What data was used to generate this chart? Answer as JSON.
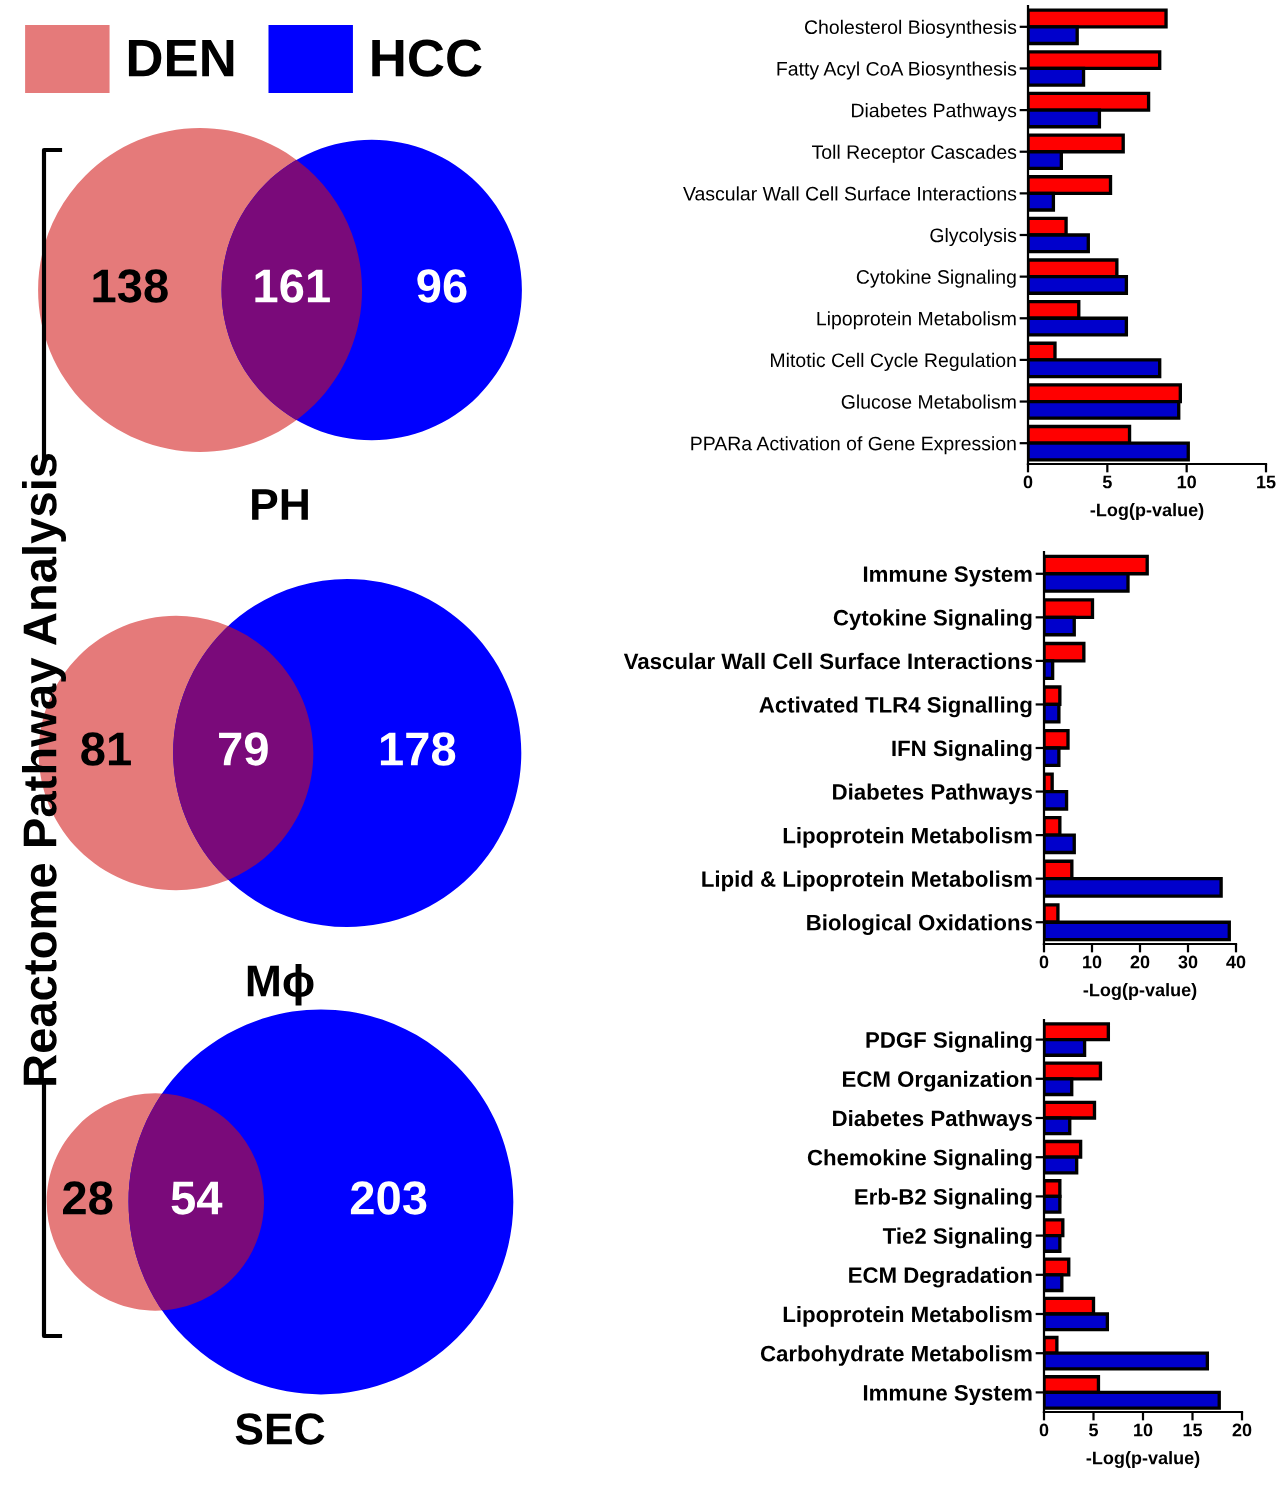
{
  "chart_data": [
    {
      "type": "other",
      "legend": "top left",
      "series": [
        {
          "name": "DEN",
          "color": "#e57a7a"
        },
        {
          "name": "HCC",
          "color": "#0000ff"
        }
      ]
    },
    {
      "type": "other",
      "title": "PH",
      "categories": [
        null,
        null,
        null
      ],
      "values": [
        138,
        161,
        96
      ],
      "colors": [
        "#e57a7a",
        "#7a0a7a",
        "#0000ff"
      ],
      "data_labels": true
    },
    {
      "type": "other",
      "title": "Mϕ",
      "categories": [
        null,
        null,
        null
      ],
      "values": [
        81,
        79,
        178
      ],
      "colors": [
        "#e57a7a",
        "#7a0a7a",
        "#0000ff"
      ],
      "data_labels": true,
      "ylabel": "Reactome Pathway Analysis"
    },
    {
      "type": "other",
      "title": "SEC",
      "categories": [
        null,
        null,
        null
      ],
      "values": [
        28,
        54,
        203
      ],
      "colors": [
        "#e57a7a",
        "#7a0a7a",
        "#0000ff"
      ],
      "data_labels": true
    },
    {
      "type": "bar",
      "orientation": "horizontal",
      "xlabel": "-Log(p-value)",
      "xlim": [
        0,
        15
      ],
      "xticks": [
        0,
        5,
        10,
        15
      ],
      "categories": [
        "Cholesterol Biosynthesis",
        "Fatty Acyl CoA Biosynthesis",
        "Diabetes Pathways",
        "Toll Receptor Cascades",
        "Vascular Wall Cell Surface Interactions",
        "Glycolysis",
        "Cytokine Signaling",
        "Lipoprotein Metabolism",
        "Mitotic Cell Cycle Regulation",
        "Glucose Metabolism",
        "PPARa Activation of Gene Expression"
      ],
      "series": [
        {
          "color": "#ff0000",
          "values": [
            8.7,
            8.3,
            7.6,
            6.0,
            5.2,
            2.4,
            5.6,
            3.2,
            1.7,
            9.6,
            6.4
          ]
        },
        {
          "color": "#0000cc",
          "values": [
            3.1,
            3.5,
            4.5,
            2.1,
            1.6,
            3.8,
            6.2,
            6.2,
            8.3,
            9.5,
            10.1
          ]
        }
      ]
    },
    {
      "type": "bar",
      "orientation": "horizontal",
      "xlabel": "-Log(p-value)",
      "xlim": [
        0,
        40
      ],
      "xticks": [
        0,
        10,
        20,
        30,
        40
      ],
      "categories": [
        "Immune System",
        "Cytokine Signaling",
        "Vascular Wall Cell Surface Interactions",
        "Activated TLR4 Signalling",
        "IFN Signaling",
        "Diabetes Pathways",
        "Lipoprotein Metabolism",
        "Lipid & Lipoprotein Metabolism",
        "Biological Oxidations"
      ],
      "series": [
        {
          "color": "#ff0000",
          "values": [
            21.5,
            10.1,
            8.3,
            3.3,
            5.0,
            1.7,
            3.3,
            5.8,
            2.9
          ]
        },
        {
          "color": "#0000cc",
          "values": [
            17.5,
            6.3,
            1.8,
            3.1,
            3.1,
            4.7,
            6.3,
            36.9,
            38.6
          ]
        }
      ]
    },
    {
      "type": "bar",
      "orientation": "horizontal",
      "xlabel": "-Log(p-value)",
      "xlim": [
        0,
        20
      ],
      "xticks": [
        0,
        5,
        10,
        15,
        20
      ],
      "categories": [
        "PDGF Signaling",
        "ECM Organization",
        "Diabetes Pathways",
        "Chemokine Signaling",
        "Erb-B2 Signaling",
        "Tie2 Signaling",
        "ECM Degradation",
        "Lipoprotein Metabolism",
        "Carbohydrate Metabolism",
        "Immune System"
      ],
      "series": [
        {
          "color": "#ff0000",
          "values": [
            6.5,
            5.7,
            5.1,
            3.7,
            1.6,
            1.9,
            2.5,
            5.0,
            1.3,
            5.5
          ]
        },
        {
          "color": "#0000cc",
          "values": [
            4.1,
            2.8,
            2.6,
            3.3,
            1.6,
            1.6,
            1.8,
            6.4,
            16.5,
            17.7
          ]
        }
      ]
    }
  ]
}
